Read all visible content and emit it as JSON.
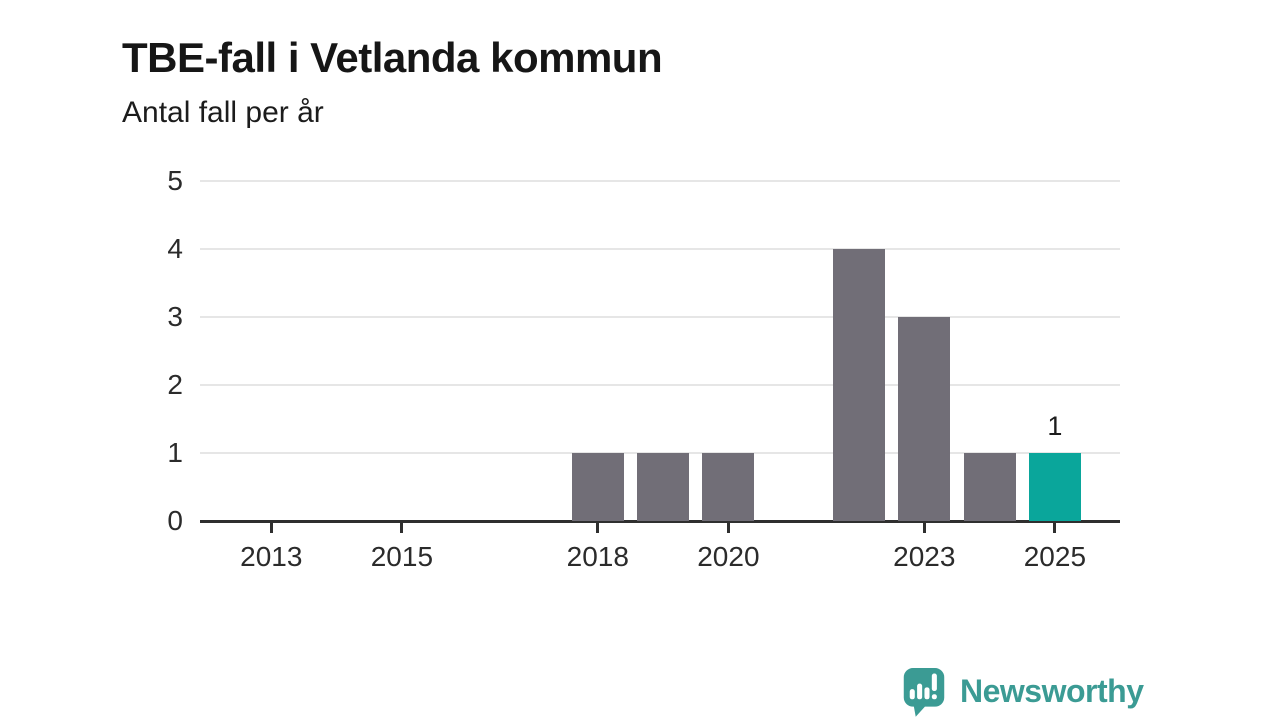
{
  "header": {
    "title": "TBE-fall i Vetlanda kommun",
    "subtitle": "Antal fall per år"
  },
  "chart_data": {
    "type": "bar",
    "title": "TBE-fall i Vetlanda kommun",
    "subtitle": "Antal fall per år",
    "ylabel": "Antal fall per år",
    "categories": [
      "2012",
      "2013",
      "2014",
      "2015",
      "2016",
      "2017",
      "2018",
      "2019",
      "2020",
      "2021",
      "2022",
      "2023",
      "2024",
      "2025"
    ],
    "values": [
      0,
      0,
      0,
      0,
      0,
      0,
      1,
      1,
      1,
      0,
      4,
      3,
      1,
      1
    ],
    "highlight_category": "2025",
    "value_labels": [
      {
        "category": "2025",
        "text": "1"
      }
    ],
    "x_tick_labels": [
      "2013",
      "2015",
      "2018",
      "2020",
      "2023",
      "2025"
    ],
    "y_ticks": [
      0,
      1,
      2,
      3,
      4,
      5
    ],
    "ylim": [
      0,
      5
    ],
    "grid": "horizontal",
    "legend": "none",
    "colors": {
      "bar": "#716e77",
      "highlight": "#0aa69b",
      "axis": "#2f2f2f",
      "gridline": "#e6e6e6",
      "label": "#2b2b2b"
    }
  },
  "branding": {
    "logo_text": "Newsworthy",
    "logo_icon": "newsworthy-speech-bubble-bar-chart-icon",
    "color": "#3b9b94"
  }
}
